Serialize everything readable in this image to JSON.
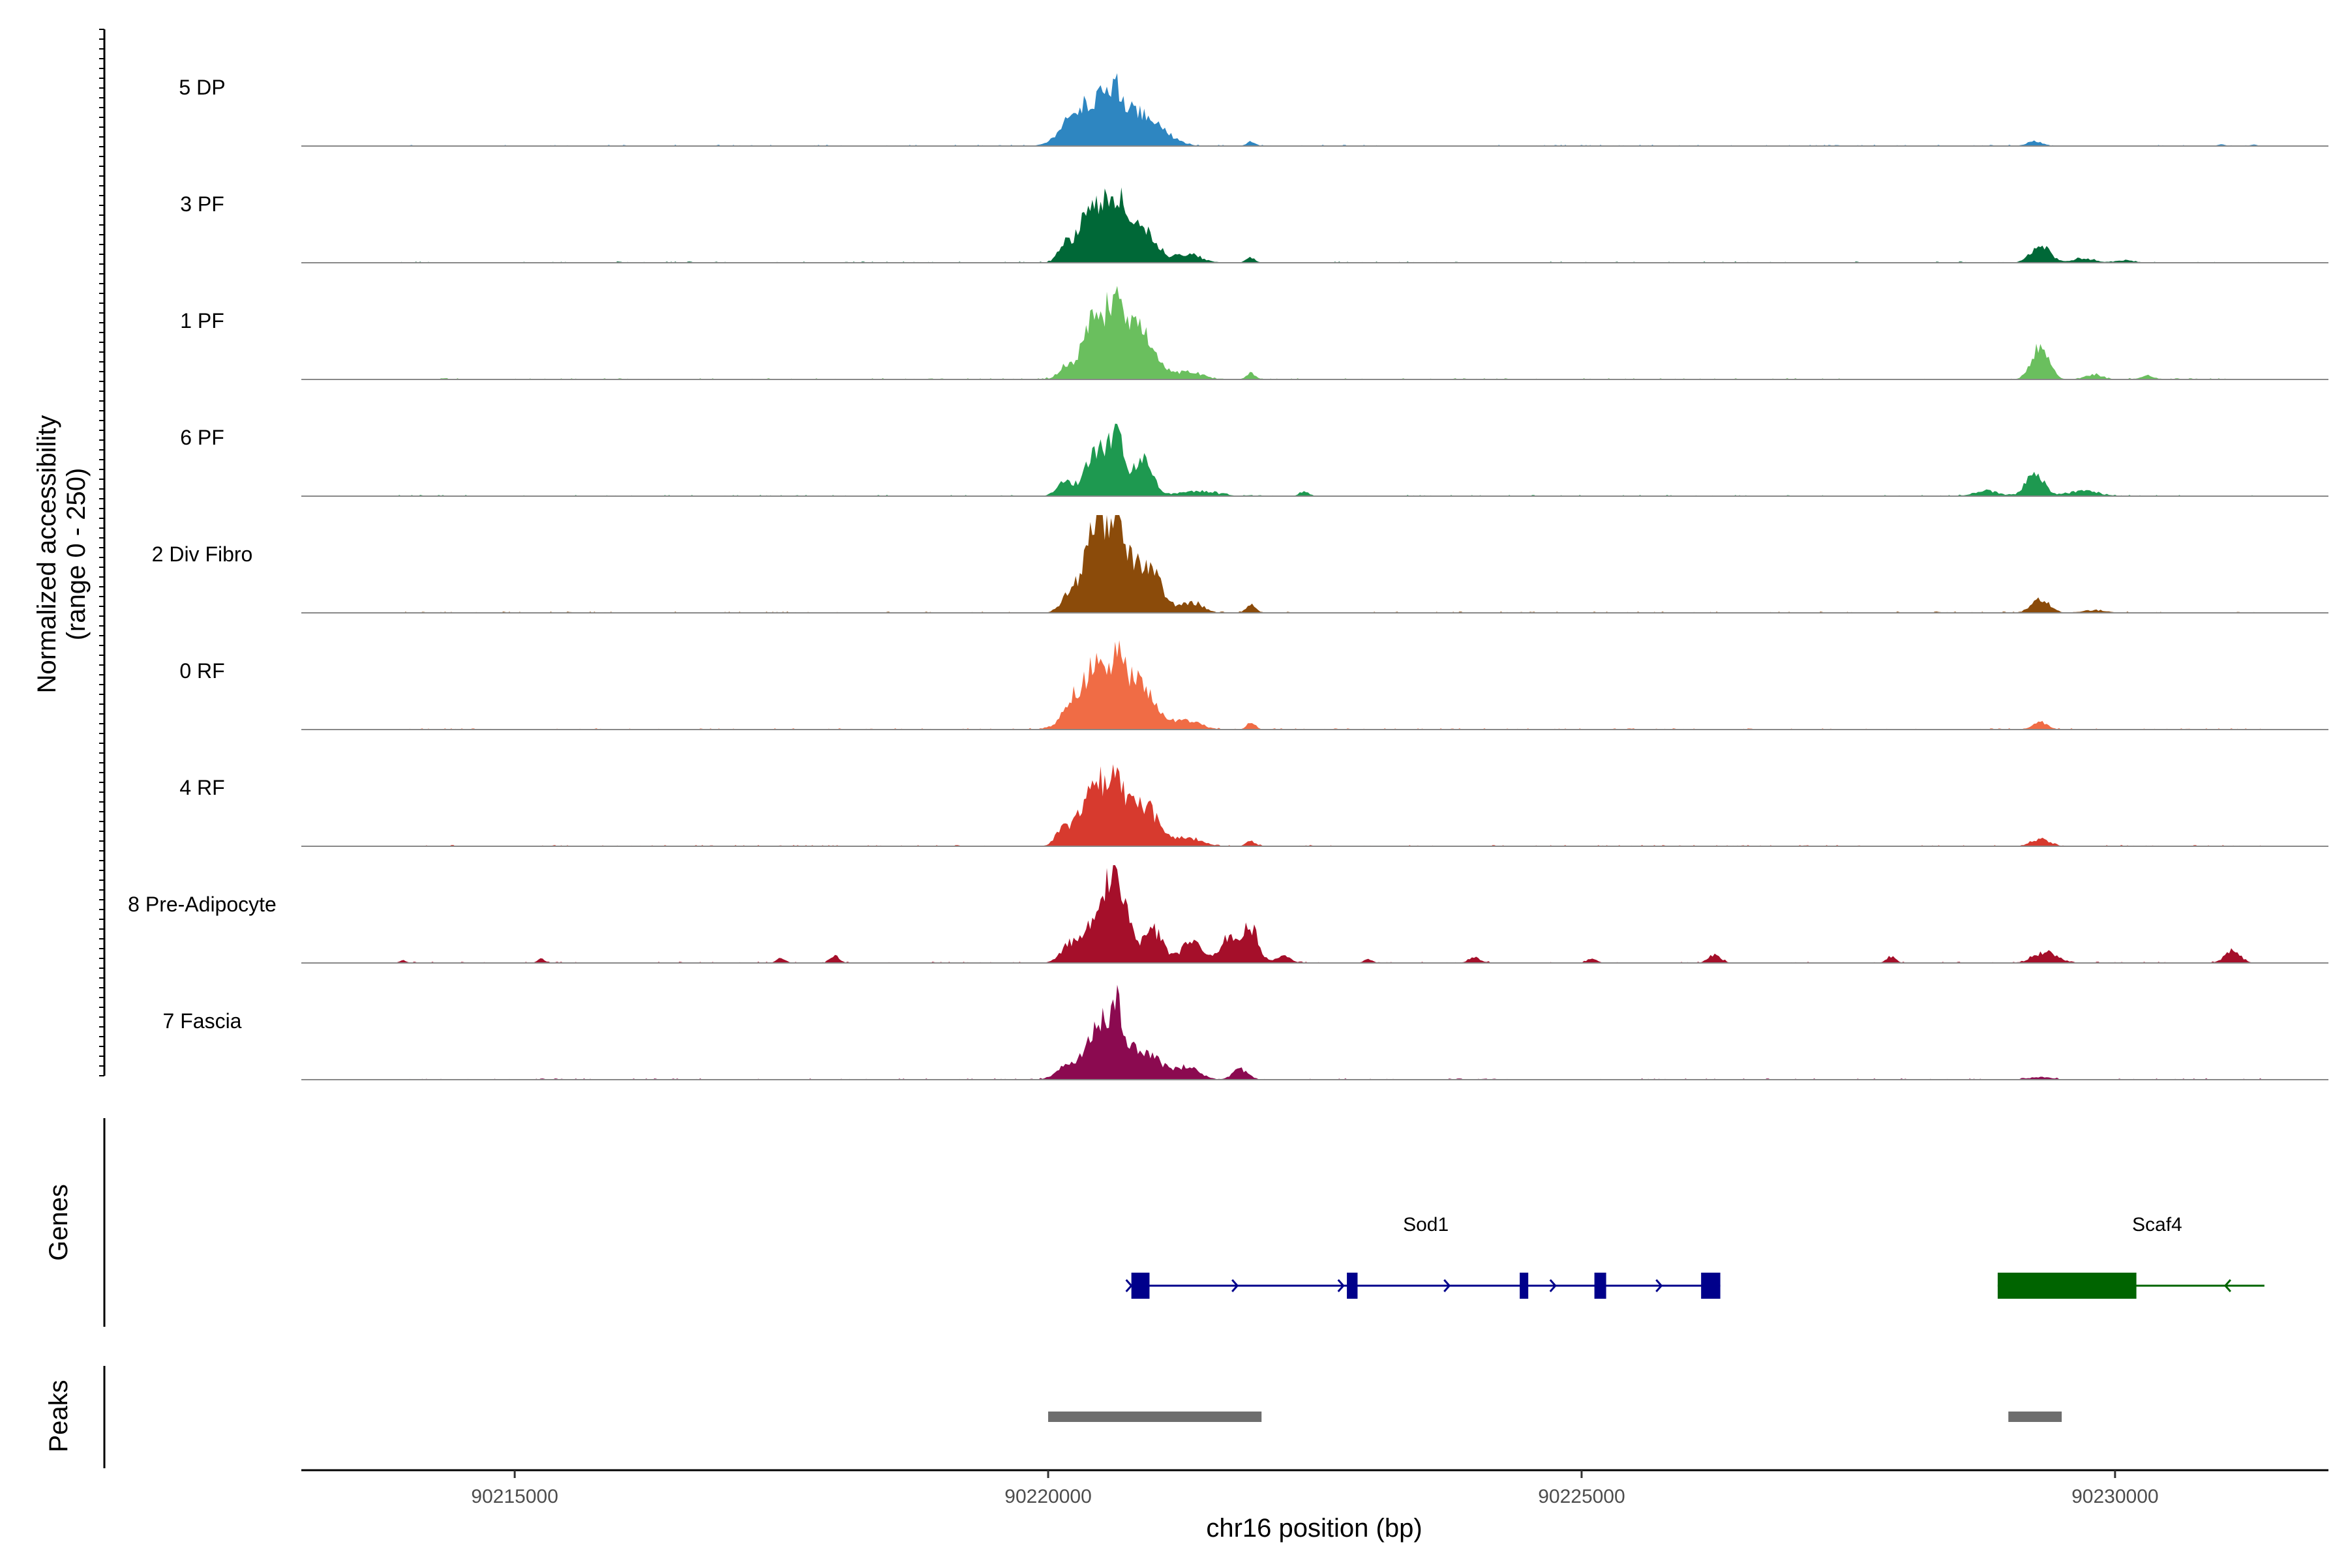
{
  "chart_data": {
    "type": "area",
    "title": "",
    "ylabel_line1": "Normalized accessibility",
    "ylabel_line2": "(range 0 - 250)",
    "xlabel": "chr16 position (bp)",
    "xlim": [
      90213000,
      90232000
    ],
    "ylim": [
      0,
      250
    ],
    "x_ticks": [
      90215000,
      90220000,
      90225000,
      90230000
    ],
    "x_tick_labels": [
      "90215000",
      "90220000",
      "90225000",
      "90230000"
    ],
    "series": [
      {
        "name": "5 DP",
        "color": "#2E86C1",
        "peaks": [
          [
            90220150,
            250,
            12
          ],
          [
            90220350,
            500,
            15
          ],
          [
            90220550,
            820,
            50
          ],
          [
            90220640,
            200,
            20
          ],
          [
            90220900,
            500,
            18
          ],
          [
            90221100,
            450,
            8
          ],
          [
            90221900,
            150,
            5
          ],
          [
            90229250,
            250,
            6
          ],
          [
            90231000,
            120,
            2
          ],
          [
            90231300,
            120,
            2
          ]
        ]
      },
      {
        "name": "3 PF",
        "color": "#006837",
        "peaks": [
          [
            90220150,
            200,
            15
          ],
          [
            90220380,
            350,
            30
          ],
          [
            90220580,
            700,
            60
          ],
          [
            90220650,
            150,
            25
          ],
          [
            90220930,
            350,
            25
          ],
          [
            90221300,
            450,
            10
          ],
          [
            90221900,
            150,
            6
          ],
          [
            90229300,
            300,
            22
          ],
          [
            90229700,
            400,
            5
          ],
          [
            90230100,
            300,
            3
          ]
        ]
      },
      {
        "name": "1 PF",
        "color": "#6ABF5E",
        "peaks": [
          [
            90220150,
            200,
            10
          ],
          [
            90220400,
            300,
            18
          ],
          [
            90220600,
            700,
            80
          ],
          [
            90220650,
            150,
            25
          ],
          [
            90220900,
            400,
            30
          ],
          [
            90221300,
            500,
            8
          ],
          [
            90221900,
            150,
            8
          ],
          [
            90229300,
            280,
            38
          ],
          [
            90229800,
            300,
            5
          ],
          [
            90230300,
            250,
            4
          ]
        ]
      },
      {
        "name": "6 PF",
        "color": "#1E9950",
        "peaks": [
          [
            90220150,
            250,
            18
          ],
          [
            90220400,
            300,
            25
          ],
          [
            90220580,
            450,
            55
          ],
          [
            90220650,
            150,
            30
          ],
          [
            90220900,
            300,
            40
          ],
          [
            90221400,
            600,
            6
          ],
          [
            90222400,
            150,
            6
          ],
          [
            90228800,
            400,
            6
          ],
          [
            90229250,
            280,
            30
          ],
          [
            90229700,
            500,
            6
          ]
        ]
      },
      {
        "name": "2 Div Fibro",
        "color": "#8B4B0A",
        "peaks": [
          [
            90220200,
            250,
            15
          ],
          [
            90220450,
            350,
            40
          ],
          [
            90220580,
            650,
            85
          ],
          [
            90220650,
            150,
            30
          ],
          [
            90220950,
            400,
            45
          ],
          [
            90221350,
            350,
            12
          ],
          [
            90221900,
            150,
            10
          ],
          [
            90229300,
            300,
            16
          ],
          [
            90229800,
            400,
            3
          ]
        ]
      },
      {
        "name": "0 RF",
        "color": "#F06C45",
        "peaks": [
          [
            90220200,
            250,
            15
          ],
          [
            90220400,
            400,
            25
          ],
          [
            90220600,
            800,
            65
          ],
          [
            90220650,
            150,
            30
          ],
          [
            90220900,
            400,
            22
          ],
          [
            90221300,
            450,
            10
          ],
          [
            90221900,
            150,
            8
          ],
          [
            90229300,
            250,
            8
          ]
        ]
      },
      {
        "name": "4 RF",
        "color": "#D73A2E",
        "peaks": [
          [
            90220150,
            250,
            18
          ],
          [
            90220400,
            350,
            30
          ],
          [
            90220600,
            700,
            65
          ],
          [
            90220650,
            150,
            30
          ],
          [
            90220950,
            350,
            30
          ],
          [
            90221300,
            450,
            10
          ],
          [
            90221900,
            150,
            6
          ],
          [
            90229300,
            300,
            8
          ]
        ]
      },
      {
        "name": "8 Pre-Adipocyte",
        "color": "#A50F2A",
        "peaks": [
          [
            90220200,
            300,
            20
          ],
          [
            90220450,
            400,
            30
          ],
          [
            90220620,
            500,
            75
          ],
          [
            90220650,
            150,
            35
          ],
          [
            90221000,
            300,
            35
          ],
          [
            90221350,
            350,
            25
          ],
          [
            90221700,
            300,
            30
          ],
          [
            90221900,
            250,
            40
          ],
          [
            90222200,
            250,
            8
          ],
          [
            90213950,
            120,
            3
          ],
          [
            90215250,
            120,
            5
          ],
          [
            90217500,
            150,
            6
          ],
          [
            90218000,
            150,
            8
          ],
          [
            90226250,
            200,
            10
          ],
          [
            90227900,
            150,
            8
          ],
          [
            90229350,
            400,
            12
          ],
          [
            90231100,
            250,
            15
          ],
          [
            90223000,
            150,
            4
          ],
          [
            90224000,
            200,
            6
          ],
          [
            90225100,
            150,
            5
          ]
        ]
      },
      {
        "name": "7 Fascia",
        "color": "#8B0A50",
        "peaks": [
          [
            90220150,
            300,
            15
          ],
          [
            90220400,
            350,
            30
          ],
          [
            90220600,
            500,
            65
          ],
          [
            90220650,
            150,
            30
          ],
          [
            90220950,
            400,
            30
          ],
          [
            90221300,
            400,
            15
          ],
          [
            90221800,
            250,
            12
          ],
          [
            90229300,
            400,
            3
          ]
        ]
      }
    ],
    "genes": [
      {
        "name": "Sod1",
        "start": 90220780,
        "end": 90226300,
        "strand": "+",
        "color": "#00008B",
        "exons": [
          [
            90220780,
            90220950
          ],
          [
            90222800,
            90222900
          ],
          [
            90224420,
            90224500
          ],
          [
            90225120,
            90225230
          ],
          [
            90226120,
            90226300
          ]
        ],
        "thick_exons": []
      },
      {
        "name": "Scaf4",
        "start": 90228900,
        "end": 90231400,
        "strand": "-",
        "color": "#006400",
        "exons": [
          [
            90228900,
            90230200
          ]
        ],
        "thick_exons": []
      }
    ],
    "peaks": [
      {
        "start": 90220000,
        "end": 90222000
      },
      {
        "start": 90229000,
        "end": 90229500
      }
    ],
    "track_titles": [
      "Genes",
      "Peaks"
    ]
  }
}
